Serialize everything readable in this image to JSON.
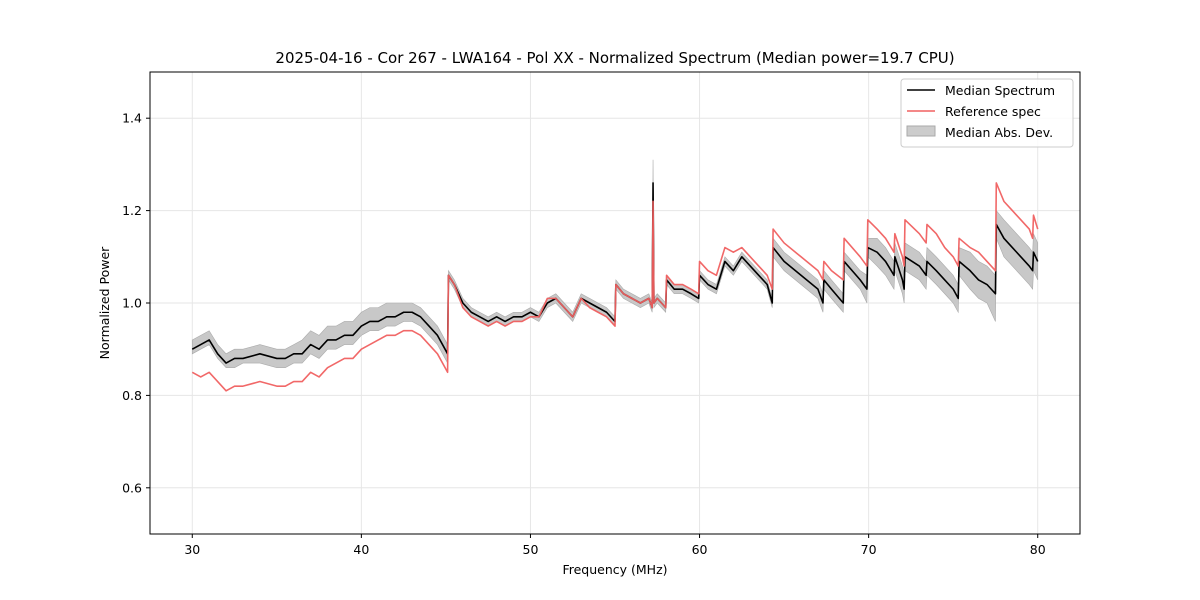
{
  "chart_data": {
    "type": "line",
    "title": "2025-04-16 - Cor 267 - LWA164 - Pol XX - Normalized Spectrum (Median power=19.7 CPU)",
    "xlabel": "Frequency (MHz)",
    "ylabel": "Normalized Power",
    "xlim": [
      27.5,
      82.5
    ],
    "ylim": [
      0.5,
      1.5
    ],
    "xticks": [
      30,
      40,
      50,
      60,
      70,
      80
    ],
    "yticks": [
      0.6,
      0.8,
      1.0,
      1.2,
      1.4
    ],
    "xtick_labels": [
      "30",
      "40",
      "50",
      "60",
      "70",
      "80"
    ],
    "ytick_labels": [
      "0.6",
      "0.8",
      "1.0",
      "1.2",
      "1.4"
    ],
    "grid": true,
    "legend_position": "top-right",
    "legend": [
      "Median Spectrum",
      "Reference spec",
      "Median Abs. Dev."
    ],
    "colors": {
      "median": "#000000",
      "reference": "#f06060",
      "mad": "#aaaaaa"
    },
    "x": [
      30,
      30.5,
      31,
      31.5,
      32,
      32.5,
      33,
      34,
      35,
      35.5,
      36,
      36.5,
      37,
      37.5,
      38,
      38.5,
      39,
      39.5,
      40,
      40.5,
      41,
      41.5,
      42,
      42.5,
      43,
      43.5,
      44,
      44.5,
      45.1,
      45.15,
      45.5,
      46,
      46.5,
      47,
      47.5,
      48,
      48.5,
      49,
      49.5,
      50,
      50.5,
      51,
      51.5,
      52,
      52.5,
      53,
      53.5,
      54,
      54.5,
      55,
      55.05,
      55.5,
      56,
      56.5,
      57,
      57.2,
      57.25,
      57.3,
      57.5,
      58,
      58.05,
      58.5,
      59,
      59.5,
      59.95,
      60,
      60.5,
      61,
      61.5,
      62,
      62.5,
      63,
      63.5,
      64,
      64.3,
      64.35,
      65,
      66,
      67,
      67.3,
      67.35,
      67.8,
      68.5,
      68.55,
      69.5,
      69.9,
      69.95,
      70.5,
      71,
      71.5,
      71.55,
      72,
      72.1,
      72.15,
      73,
      73.4,
      73.45,
      74,
      74.5,
      75,
      75.3,
      75.35,
      76,
      76.5,
      77,
      77.5,
      77.55,
      78,
      78.5,
      79,
      79.5,
      79.7,
      79.75,
      80
    ],
    "series": [
      {
        "name": "Median Spectrum",
        "values": [
          0.9,
          0.91,
          0.92,
          0.89,
          0.87,
          0.88,
          0.88,
          0.89,
          0.88,
          0.88,
          0.89,
          0.89,
          0.91,
          0.9,
          0.92,
          0.92,
          0.93,
          0.93,
          0.95,
          0.96,
          0.96,
          0.97,
          0.97,
          0.98,
          0.98,
          0.97,
          0.95,
          0.93,
          0.89,
          1.06,
          1.04,
          1.0,
          0.98,
          0.97,
          0.96,
          0.97,
          0.96,
          0.97,
          0.97,
          0.98,
          0.97,
          1.0,
          1.01,
          0.99,
          0.97,
          1.01,
          1.0,
          0.99,
          0.98,
          0.96,
          1.04,
          1.02,
          1.01,
          1.0,
          1.01,
          0.99,
          1.26,
          1.0,
          1.01,
          0.99,
          1.05,
          1.03,
          1.03,
          1.02,
          1.01,
          1.06,
          1.04,
          1.03,
          1.09,
          1.07,
          1.1,
          1.08,
          1.06,
          1.04,
          1.0,
          1.12,
          1.09,
          1.06,
          1.03,
          1.0,
          1.05,
          1.03,
          1.0,
          1.09,
          1.05,
          1.03,
          1.12,
          1.11,
          1.09,
          1.06,
          1.1,
          1.05,
          1.03,
          1.1,
          1.08,
          1.06,
          1.09,
          1.07,
          1.05,
          1.03,
          1.01,
          1.09,
          1.07,
          1.05,
          1.04,
          1.02,
          1.17,
          1.14,
          1.12,
          1.1,
          1.08,
          1.07,
          1.11,
          1.09
        ]
      },
      {
        "name": "Reference spec",
        "values": [
          0.85,
          0.84,
          0.85,
          0.83,
          0.81,
          0.82,
          0.82,
          0.83,
          0.82,
          0.82,
          0.83,
          0.83,
          0.85,
          0.84,
          0.86,
          0.87,
          0.88,
          0.88,
          0.9,
          0.91,
          0.92,
          0.93,
          0.93,
          0.94,
          0.94,
          0.93,
          0.91,
          0.89,
          0.85,
          1.06,
          1.04,
          0.99,
          0.97,
          0.96,
          0.95,
          0.96,
          0.95,
          0.96,
          0.96,
          0.97,
          0.97,
          1.01,
          1.01,
          0.99,
          0.97,
          1.01,
          0.99,
          0.98,
          0.97,
          0.95,
          1.04,
          1.02,
          1.01,
          1.0,
          1.01,
          0.99,
          1.22,
          1.0,
          1.01,
          0.99,
          1.06,
          1.04,
          1.04,
          1.03,
          1.02,
          1.09,
          1.07,
          1.06,
          1.12,
          1.11,
          1.12,
          1.1,
          1.08,
          1.06,
          1.03,
          1.16,
          1.13,
          1.1,
          1.07,
          1.05,
          1.09,
          1.07,
          1.05,
          1.14,
          1.1,
          1.08,
          1.18,
          1.16,
          1.14,
          1.11,
          1.15,
          1.1,
          1.08,
          1.18,
          1.15,
          1.13,
          1.17,
          1.15,
          1.12,
          1.1,
          1.08,
          1.14,
          1.12,
          1.11,
          1.09,
          1.07,
          1.26,
          1.22,
          1.2,
          1.18,
          1.16,
          1.14,
          1.19,
          1.16
        ]
      },
      {
        "name": "Median Abs. Dev.",
        "lower": [
          0.89,
          0.9,
          0.91,
          0.88,
          0.86,
          0.86,
          0.87,
          0.87,
          0.86,
          0.86,
          0.87,
          0.87,
          0.89,
          0.88,
          0.9,
          0.9,
          0.91,
          0.91,
          0.93,
          0.94,
          0.94,
          0.95,
          0.95,
          0.96,
          0.96,
          0.95,
          0.93,
          0.91,
          0.87,
          1.05,
          1.03,
          0.99,
          0.97,
          0.96,
          0.95,
          0.96,
          0.95,
          0.96,
          0.96,
          0.97,
          0.96,
          0.99,
          1.0,
          0.98,
          0.96,
          1.0,
          0.99,
          0.98,
          0.97,
          0.95,
          1.03,
          1.01,
          1.0,
          0.99,
          1.0,
          0.98,
          1.22,
          0.99,
          1.0,
          0.98,
          1.04,
          1.02,
          1.02,
          1.01,
          1.0,
          1.05,
          1.03,
          1.02,
          1.08,
          1.06,
          1.09,
          1.07,
          1.05,
          1.03,
          0.99,
          1.1,
          1.07,
          1.04,
          1.01,
          0.98,
          1.03,
          1.01,
          0.98,
          1.07,
          1.03,
          1.0,
          1.1,
          1.08,
          1.06,
          1.03,
          1.07,
          1.02,
          1.0,
          1.07,
          1.05,
          1.03,
          1.06,
          1.04,
          1.02,
          1.0,
          0.98,
          1.06,
          1.03,
          1.01,
          1.0,
          0.96,
          1.14,
          1.1,
          1.08,
          1.06,
          1.04,
          1.03,
          1.07,
          1.05
        ],
        "upper": [
          0.92,
          0.93,
          0.94,
          0.91,
          0.89,
          0.9,
          0.9,
          0.91,
          0.9,
          0.9,
          0.91,
          0.92,
          0.94,
          0.93,
          0.95,
          0.95,
          0.96,
          0.96,
          0.98,
          0.99,
          0.99,
          1.0,
          1.0,
          1.0,
          1.0,
          0.99,
          0.97,
          0.95,
          0.91,
          1.07,
          1.05,
          1.01,
          0.99,
          0.98,
          0.97,
          0.98,
          0.97,
          0.98,
          0.98,
          0.99,
          0.98,
          1.01,
          1.02,
          1.0,
          0.98,
          1.02,
          1.01,
          1.0,
          0.99,
          0.97,
          1.05,
          1.03,
          1.02,
          1.01,
          1.02,
          1.0,
          1.31,
          1.01,
          1.02,
          1.0,
          1.06,
          1.04,
          1.04,
          1.03,
          1.02,
          1.07,
          1.05,
          1.04,
          1.1,
          1.08,
          1.11,
          1.09,
          1.07,
          1.05,
          1.01,
          1.14,
          1.11,
          1.08,
          1.05,
          1.02,
          1.07,
          1.05,
          1.02,
          1.11,
          1.07,
          1.06,
          1.14,
          1.14,
          1.12,
          1.09,
          1.13,
          1.08,
          1.06,
          1.13,
          1.11,
          1.09,
          1.12,
          1.1,
          1.08,
          1.06,
          1.04,
          1.12,
          1.11,
          1.09,
          1.08,
          1.06,
          1.2,
          1.18,
          1.16,
          1.14,
          1.12,
          1.11,
          1.15,
          1.13
        ]
      }
    ]
  }
}
